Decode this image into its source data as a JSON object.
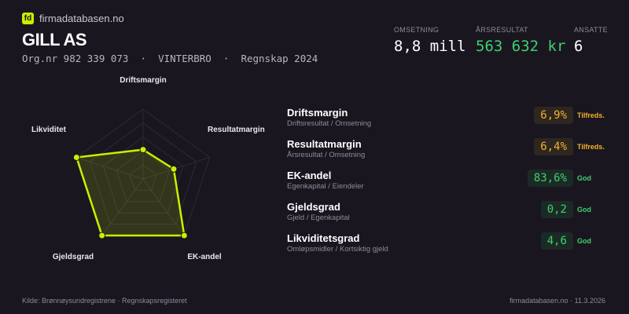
{
  "brand": {
    "logo": "fd",
    "site": "firmadatabasen.no"
  },
  "company": {
    "name": "GILL AS",
    "subtitle": "Org.nr 982 339 073  ·  VINTERBRO  ·  Regnskap 2024"
  },
  "kpis": [
    {
      "label": "OMSETNING",
      "value": "8,8 mill",
      "color": "#ffffff"
    },
    {
      "label": "ÅRSRESULTAT",
      "value": "563 632 kr",
      "color": "#3ecf6e"
    },
    {
      "label": "ANSATTE",
      "value": "6",
      "color": "#ffffff"
    }
  ],
  "radar": {
    "axes": [
      "Driftsmargin",
      "Resultatmargin",
      "EK-andel",
      "Gjeldsgrad",
      "Likviditet"
    ],
    "levels": [
      0.42,
      0.46,
      1.0,
      1.0,
      1.0
    ],
    "color": "#c8f000"
  },
  "metrics": [
    {
      "title": "Driftsmargin",
      "sub": "Driftsresultat / Omsetning",
      "value": "6,9%",
      "status": "Tilfreds.",
      "kind": "warn"
    },
    {
      "title": "Resultatmargin",
      "sub": "Årsresultat / Omsetning",
      "value": "6,4%",
      "status": "Tilfreds.",
      "kind": "warn"
    },
    {
      "title": "EK-andel",
      "sub": "Egenkapital / Eiendeler",
      "value": "83,6%",
      "status": "God",
      "kind": "good"
    },
    {
      "title": "Gjeldsgrad",
      "sub": "Gjeld / Egenkapital",
      "value": "0,2",
      "status": "God",
      "kind": "good"
    },
    {
      "title": "Likviditetsgrad",
      "sub": "Omløpsmidler / Kortsiktig gjeld",
      "value": "4,6",
      "status": "God",
      "kind": "good"
    }
  ],
  "footer": {
    "source": "Kilde: Brønnøysundregistrene · Regnskapsregisteret",
    "right": "firmadatabasen.no · 11.3.2026"
  }
}
